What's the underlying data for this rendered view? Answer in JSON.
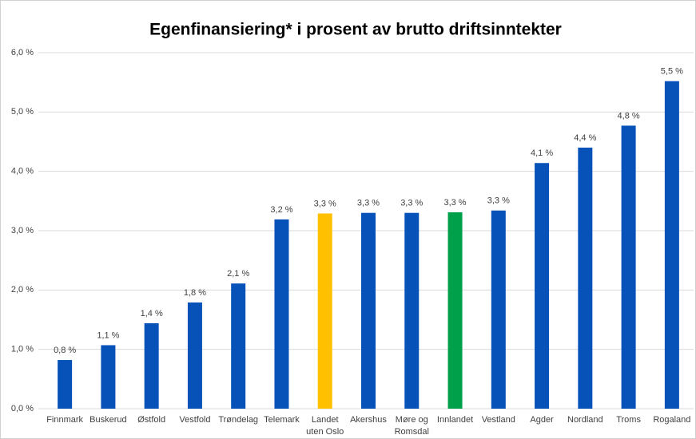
{
  "chart_data": {
    "type": "bar",
    "title": "Egenfinansiering* i prosent av brutto driftsinntekter",
    "categories": [
      "Finnmark",
      "Buskerud",
      "Østfold",
      "Vestfold",
      "Trøndelag",
      "Telemark",
      "Landet\nuten Oslo",
      "Akershus",
      "Møre og\nRomsdal",
      "Innlandet",
      "Vestland",
      "Agder",
      "Nordland",
      "Troms",
      "Rogaland"
    ],
    "values": [
      0.82,
      1.07,
      1.44,
      1.79,
      2.11,
      3.19,
      3.29,
      3.3,
      3.3,
      3.31,
      3.34,
      4.14,
      4.4,
      4.77,
      5.52
    ],
    "value_labels": [
      "0,8 %",
      "1,1 %",
      "1,4 %",
      "1,8 %",
      "2,1 %",
      "3,2 %",
      "3,3 %",
      "3,3 %",
      "3,3 %",
      "3,3 %",
      "3,3 %",
      "4,1 %",
      "4,4 %",
      "4,8 %",
      "5,5 %"
    ],
    "colors": [
      "#0652b8",
      "#0652b8",
      "#0652b8",
      "#0652b8",
      "#0652b8",
      "#0652b8",
      "#ffc000",
      "#0652b8",
      "#0652b8",
      "#00a04b",
      "#0652b8",
      "#0652b8",
      "#0652b8",
      "#0652b8",
      "#0652b8"
    ],
    "ylim": [
      0,
      6
    ],
    "yticks": [
      {
        "value": 0,
        "label": "0,0 %"
      },
      {
        "value": 1,
        "label": "1,0 %"
      },
      {
        "value": 2,
        "label": "2,0 %"
      },
      {
        "value": 3,
        "label": "3,0 %"
      },
      {
        "value": 4,
        "label": "4,0 %"
      },
      {
        "value": 5,
        "label": "5,0 %"
      },
      {
        "value": 6,
        "label": "6,0 %"
      }
    ],
    "grid": true
  }
}
